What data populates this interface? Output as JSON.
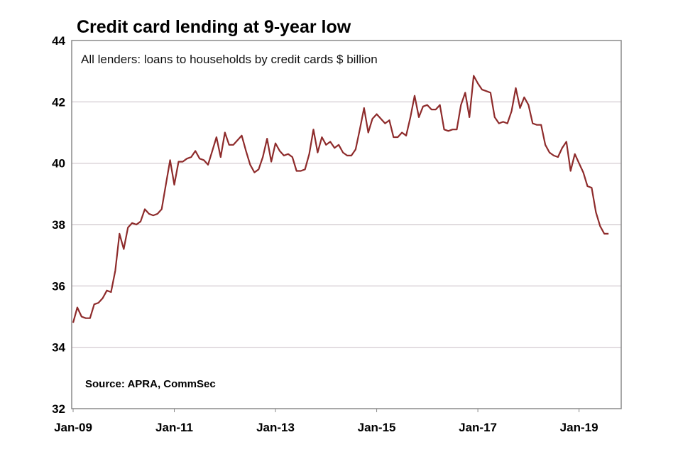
{
  "chart_data": {
    "type": "line",
    "title": "Credit card lending at 9-year low",
    "subtitle": "All lenders: loans to households by credit cards $ billion",
    "source": "Source: APRA, CommSec",
    "ylim": [
      32,
      44
    ],
    "yticks": [
      "32",
      "34",
      "36",
      "38",
      "40",
      "42",
      "44"
    ],
    "xlim": [
      "2009-01",
      "2019-11"
    ],
    "xticks": [
      {
        "label": "Jan-09",
        "date": "2009-01"
      },
      {
        "label": "Jan-11",
        "date": "2011-01"
      },
      {
        "label": "Jan-13",
        "date": "2013-01"
      },
      {
        "label": "Jan-15",
        "date": "2015-01"
      },
      {
        "label": "Jan-17",
        "date": "2017-01"
      },
      {
        "label": "Jan-19",
        "date": "2019-01"
      }
    ],
    "grid": true,
    "line_color": "#8e2b2b",
    "series": [
      {
        "frequency": "monthly",
        "by_year": [
          {
            "year": 2009,
            "values": [
              34.8,
              35.3,
              35.0,
              34.95,
              34.95,
              35.4,
              35.45,
              35.6,
              35.85,
              35.8,
              36.5,
              37.7
            ]
          },
          {
            "year": 2010,
            "values": [
              37.2,
              37.9,
              38.05,
              38.0,
              38.1,
              38.5,
              38.35,
              38.3,
              38.35,
              38.5,
              39.3,
              40.1
            ]
          },
          {
            "year": 2011,
            "values": [
              39.3,
              40.05,
              40.05,
              40.15,
              40.2,
              40.4,
              40.15,
              40.1,
              39.95,
              40.4,
              40.85,
              40.2
            ]
          },
          {
            "year": 2012,
            "values": [
              41.0,
              40.6,
              40.6,
              40.75,
              40.9,
              40.4,
              39.95,
              39.7,
              39.8,
              40.2,
              40.8,
              40.05
            ]
          },
          {
            "year": 2013,
            "values": [
              40.65,
              40.4,
              40.25,
              40.3,
              40.2,
              39.75,
              39.75,
              39.8,
              40.3,
              41.1,
              40.35,
              40.85
            ]
          },
          {
            "year": 2014,
            "values": [
              40.6,
              40.7,
              40.5,
              40.6,
              40.35,
              40.25,
              40.25,
              40.45,
              41.1,
              41.8,
              41.0,
              41.45
            ]
          },
          {
            "year": 2015,
            "values": [
              41.6,
              41.45,
              41.3,
              41.4,
              40.85,
              40.85,
              41.0,
              40.9,
              41.5,
              42.2,
              41.5,
              41.85
            ]
          },
          {
            "year": 2016,
            "values": [
              41.9,
              41.75,
              41.75,
              41.9,
              41.1,
              41.05,
              41.1,
              41.1,
              41.9,
              42.3,
              41.5,
              42.85
            ]
          },
          {
            "year": 2017,
            "values": [
              42.6,
              42.4,
              42.35,
              42.3,
              41.5,
              41.3,
              41.35,
              41.3,
              41.7,
              42.45,
              41.8,
              42.15
            ]
          },
          {
            "year": 2018,
            "values": [
              41.9,
              41.3,
              41.25,
              41.25,
              40.6,
              40.35,
              40.25,
              40.2,
              40.5,
              40.7,
              39.75,
              40.3
            ]
          },
          {
            "year": 2019,
            "values": [
              40.0,
              39.7,
              39.25,
              39.2,
              38.4,
              37.95,
              37.7,
              37.7
            ]
          }
        ]
      }
    ]
  }
}
